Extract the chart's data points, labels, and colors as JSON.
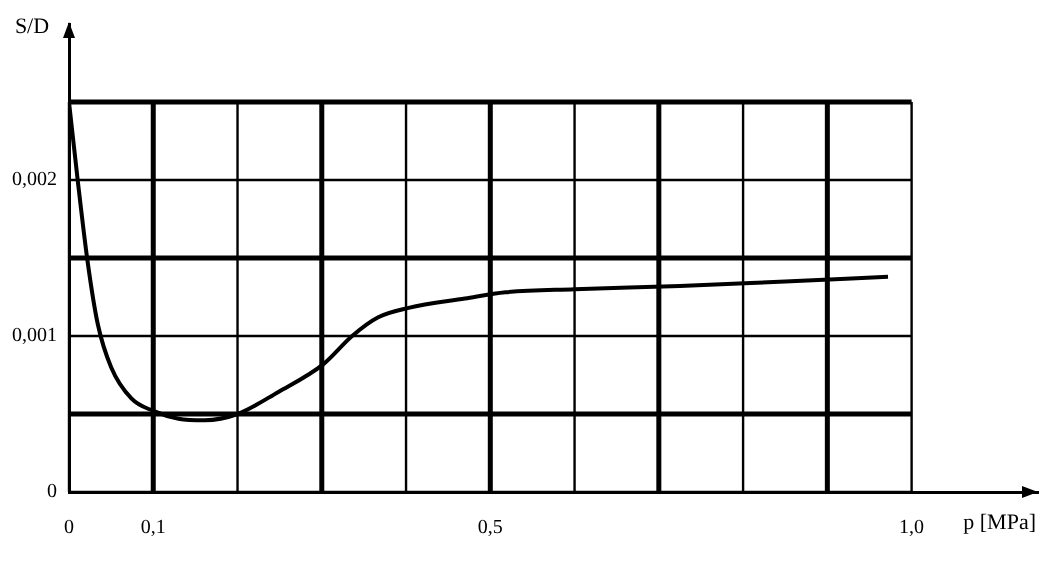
{
  "chart_data": {
    "type": "line",
    "xlabel": "p [MPa]",
    "ylabel": "S/D",
    "x": [
      0,
      0.0103,
      0.022,
      0.034,
      0.05,
      0.074,
      0.1,
      0.13,
      0.161,
      0.2,
      0.248,
      0.302,
      0.336,
      0.367,
      0.403,
      0.47,
      0.518,
      0.6,
      0.725,
      0.85,
      0.972
    ],
    "series": [
      {
        "color": "#000000",
        "values": [
          0.0025,
          0.002,
          0.00148,
          0.00108,
          0.0008,
          0.0006,
          0.00052,
          0.00047,
          0.00046,
          0.0005,
          0.00064,
          0.00082,
          0.001,
          0.00112,
          0.00118,
          0.00124,
          0.00128,
          0.0013,
          0.00132,
          0.00135,
          0.00138
        ]
      }
    ],
    "xlim": [
      0,
      1.15
    ],
    "ylim": [
      0,
      0.003
    ],
    "xticks": [
      0,
      {
        "value": 0.1,
        "label": "0,1"
      },
      {
        "value": 0.2,
        "label": null
      },
      {
        "value": 0.3,
        "label": null
      },
      {
        "value": 0.4,
        "label": null
      },
      {
        "value": 0.5,
        "label": "0,5"
      },
      {
        "value": 0.6,
        "label": null
      },
      {
        "value": 0.7,
        "label": null
      },
      {
        "value": 0.8,
        "label": null
      },
      {
        "value": 0.9,
        "label": null
      },
      {
        "value": 1.0,
        "label": "1,0"
      }
    ],
    "yticks": [
      0,
      {
        "value": 0.0005,
        "label": null
      },
      {
        "value": 0.001,
        "label": "0,001"
      },
      {
        "value": 0.0015,
        "label": null
      },
      {
        "value": 0.002,
        "label": "0,002"
      },
      {
        "value": 0.0025,
        "label": null
      }
    ],
    "grid": true,
    "legend": false,
    "marker": "none",
    "line_style": "solid"
  }
}
